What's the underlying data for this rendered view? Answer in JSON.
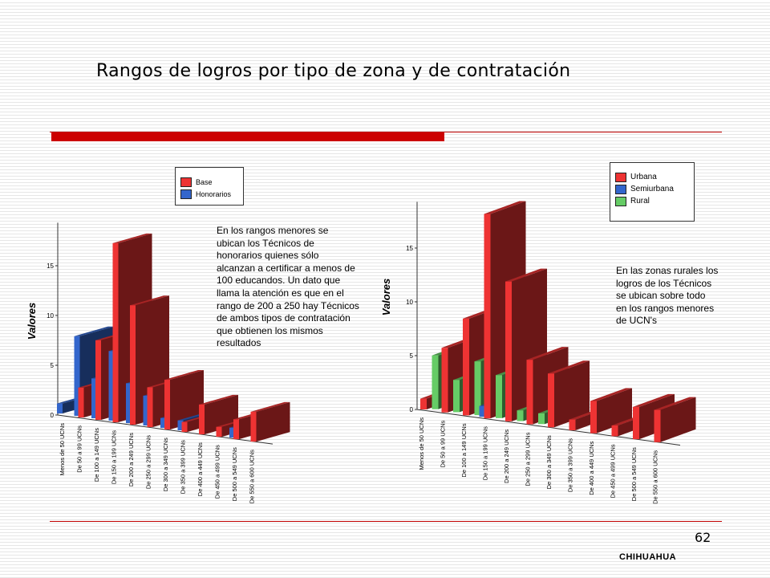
{
  "title": "Rangos de logros por tipo de zona y de contratación",
  "page_number": "62",
  "footer": "CHIHUAHUA",
  "note_left": "En los rangos menores se ubican los Técnicos de honorarios quienes sólo alcanzan a certificar a menos de 100 educandos. Un dato que llama la atención es que en el rango de  200 a 250 hay Técnicos de ambos tipos de contratación que obtienen los mismos resultados",
  "note_right": "En las zonas rurales los logros de los Técnicos se ubican sobre todo en los rangos menores de UCN's",
  "chart_data": [
    {
      "type": "bar",
      "ylabel": "Valores",
      "ylim": [
        0,
        18
      ],
      "yticks": [
        "0",
        "5",
        "10",
        "15"
      ],
      "categories": [
        "Menos de 50 UCNs",
        "De 50 a 99 UCNs",
        "De 100 a 149 UCNs",
        "De 150 a 199 UCNs",
        "De 200 a 249 UCNs",
        "De 250 a 299 UCNs",
        "De 300 a 349 UCNs",
        "De 350 a 399 UCNs",
        "De 400 a 449 UCNs",
        "De 450 a 499 UCNs",
        "De 500 a 549 UCNs",
        "De 550 a 600 UCNs"
      ],
      "series": [
        {
          "name": "Base",
          "color": "#ee3333",
          "values": [
            0,
            3,
            8,
            18,
            12,
            4,
            5,
            1,
            3,
            1,
            2,
            3
          ]
        },
        {
          "name": "Honorarios",
          "color": "#3366cc",
          "values": [
            1,
            8,
            4,
            7,
            4,
            3,
            1,
            1,
            0,
            0,
            1,
            0
          ]
        }
      ],
      "legend": "top"
    },
    {
      "type": "bar",
      "ylabel": "Valores",
      "ylim": [
        0,
        19
      ],
      "yticks": [
        "0",
        "5",
        "10",
        "15"
      ],
      "categories": [
        "Menos de 50 UCNs",
        "De 50 a 99 UCNs",
        "De 100 a 149 UCNs",
        "De 150 a 199 UCNs",
        "De 200 a 249 UCNs",
        "De 250 a 299 UCNs",
        "De 300 a 349 UCNs",
        "De 350 a 399 UCNs",
        "De 400 a 449 UCNs",
        "De 450 a 499 UCNs",
        "De 500 a 549 UCNs",
        "De 550 a 600 UCNs"
      ],
      "series": [
        {
          "name": "Urbana",
          "color": "#ee3333",
          "values": [
            1,
            6,
            9,
            19,
            13,
            6,
            5,
            1,
            3,
            1,
            3,
            3
          ]
        },
        {
          "name": "Semiurbana",
          "color": "#3366cc",
          "values": [
            0,
            0,
            0,
            1,
            0,
            0,
            0,
            0,
            0,
            0,
            0,
            0
          ]
        },
        {
          "name": "Rural",
          "color": "#66cc66",
          "values": [
            0,
            5,
            3,
            5,
            4,
            1,
            1,
            0,
            0,
            0,
            0,
            0
          ]
        }
      ],
      "legend": "top-right"
    }
  ]
}
